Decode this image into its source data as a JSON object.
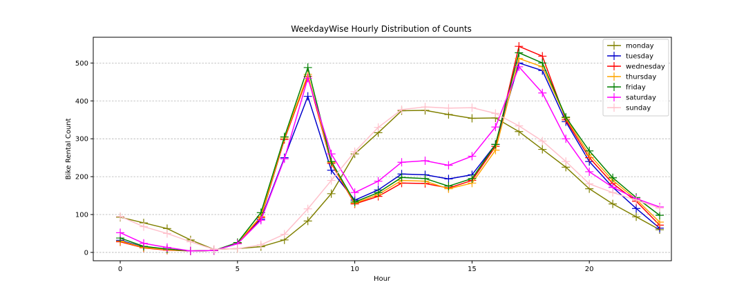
{
  "chart_data": {
    "type": "line",
    "title": "WeekdayWise Hourly Distribution of Counts",
    "xlabel": "Hour",
    "ylabel": "Bike Rental Count",
    "xlim": [
      -1.15,
      23.5
    ],
    "ylim": [
      -22,
      568
    ],
    "xticks": [
      0,
      5,
      10,
      15,
      20
    ],
    "yticks": [
      0,
      100,
      200,
      300,
      400,
      500
    ],
    "grid": "horizontal dashed",
    "legend_position": "top-right",
    "marker": "plus",
    "x": [
      0,
      1,
      2,
      3,
      4,
      5,
      6,
      7,
      8,
      9,
      10,
      11,
      12,
      13,
      14,
      15,
      16,
      17,
      18,
      19,
      20,
      21,
      22,
      23
    ],
    "series": [
      {
        "name": "monday",
        "color": "#808000",
        "values": [
          93,
          78,
          63,
          33,
          8,
          10,
          15,
          33,
          83,
          155,
          260,
          316,
          374,
          375,
          364,
          354,
          355,
          319,
          272,
          225,
          168,
          128,
          94,
          60
        ]
      },
      {
        "name": "tuesday",
        "color": "#0000cc",
        "values": [
          32,
          14,
          8,
          4,
          5,
          23,
          88,
          250,
          412,
          217,
          138,
          165,
          207,
          205,
          194,
          205,
          285,
          500,
          480,
          345,
          240,
          172,
          116,
          64
        ]
      },
      {
        "name": "wednesday",
        "color": "#ff0000",
        "values": [
          28,
          12,
          6,
          4,
          5,
          24,
          92,
          298,
          465,
          235,
          128,
          148,
          183,
          182,
          170,
          190,
          280,
          544,
          518,
          350,
          250,
          182,
          135,
          72
        ]
      },
      {
        "name": "thursday",
        "color": "#ffa500",
        "values": [
          30,
          13,
          7,
          4,
          5,
          25,
          95,
          302,
          470,
          238,
          130,
          153,
          190,
          188,
          168,
          183,
          270,
          512,
          490,
          355,
          258,
          190,
          140,
          80
        ]
      },
      {
        "name": "friday",
        "color": "#008000",
        "values": [
          38,
          16,
          9,
          4,
          5,
          26,
          105,
          305,
          488,
          240,
          133,
          158,
          198,
          195,
          175,
          195,
          285,
          527,
          500,
          357,
          268,
          197,
          145,
          98
        ]
      },
      {
        "name": "saturday",
        "color": "#ff00ff",
        "values": [
          52,
          24,
          13,
          4,
          5,
          23,
          85,
          247,
          460,
          260,
          158,
          188,
          238,
          242,
          230,
          254,
          331,
          490,
          421,
          300,
          213,
          172,
          142,
          120
        ]
      },
      {
        "name": "sunday",
        "color": "#ffc0cb",
        "values": [
          95,
          68,
          50,
          28,
          8,
          10,
          20,
          48,
          115,
          190,
          266,
          330,
          377,
          384,
          381,
          382,
          367,
          334,
          294,
          240,
          181,
          158,
          138,
          117
        ]
      }
    ]
  }
}
